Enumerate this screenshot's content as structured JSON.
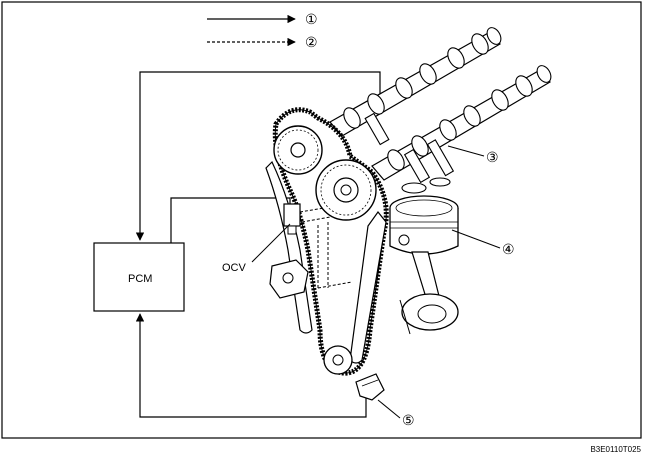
{
  "legend": [
    {
      "marker": "①",
      "line": "solid"
    },
    {
      "marker": "②",
      "line": "dashed"
    }
  ],
  "labels": {
    "pcm": "PCM",
    "ocv": "OCV",
    "callout_3": "③",
    "callout_4": "④",
    "callout_5": "⑤"
  },
  "figure_code": "B3E0110T025",
  "colors": {
    "ink": "#000000",
    "paper": "#ffffff"
  }
}
